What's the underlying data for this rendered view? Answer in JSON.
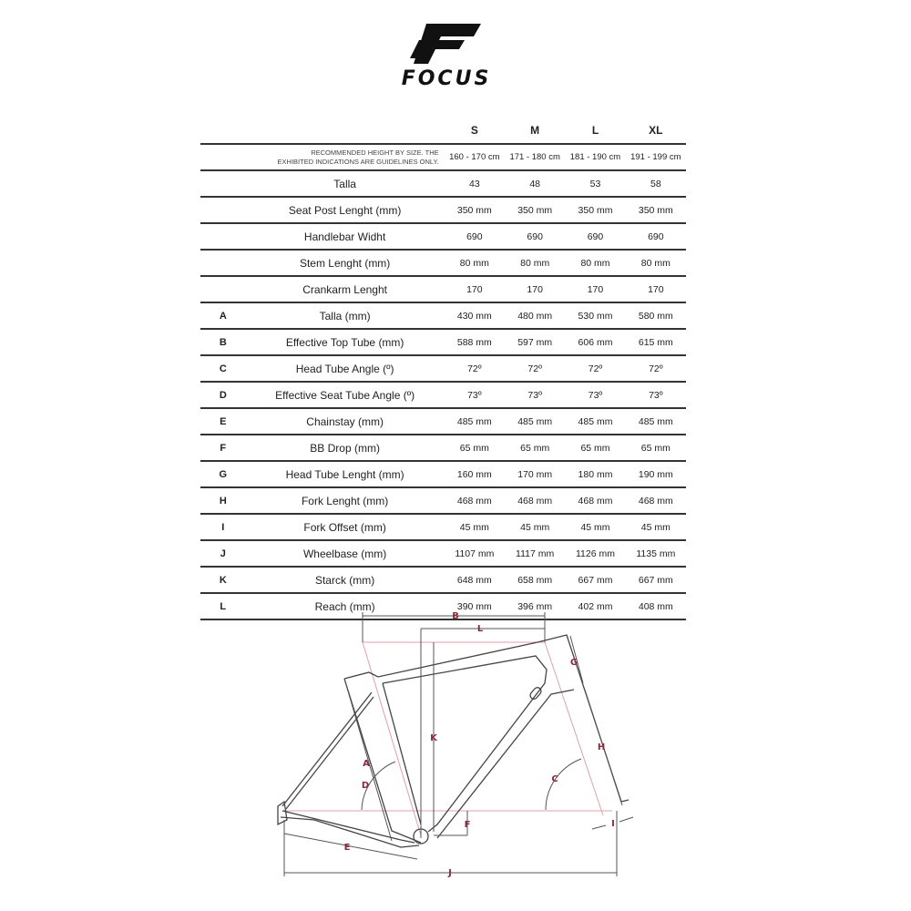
{
  "brand": {
    "name": "FOCUS"
  },
  "table": {
    "sizes": [
      "S",
      "M",
      "L",
      "XL"
    ],
    "recommended": {
      "label_line1": "RECOMMENDED HEIGHT BY SIZE.  THE",
      "label_line2": "EXHIBITED INDICATIONS ARE GUIDELINES ONLY.",
      "values": [
        "160 - 170 cm",
        "171 - 180 cm",
        "181 - 190 cm",
        "191 - 199 cm"
      ]
    },
    "rows": [
      {
        "letter": "",
        "label": "Talla",
        "values": [
          "43",
          "48",
          "53",
          "58"
        ]
      },
      {
        "letter": "",
        "label": "Seat Post Lenght (mm)",
        "values": [
          "350 mm",
          "350 mm",
          "350 mm",
          "350 mm"
        ]
      },
      {
        "letter": "",
        "label": "Handlebar Widht",
        "values": [
          "690",
          "690",
          "690",
          "690"
        ]
      },
      {
        "letter": "",
        "label": "Stem Lenght (mm)",
        "values": [
          "80 mm",
          "80 mm",
          "80 mm",
          "80 mm"
        ]
      },
      {
        "letter": "",
        "label": "Crankarm Lenght",
        "values": [
          "170",
          "170",
          "170",
          "170"
        ]
      },
      {
        "letter": "A",
        "label": "Talla (mm)",
        "values": [
          "430 mm",
          "480 mm",
          "530 mm",
          "580 mm"
        ]
      },
      {
        "letter": "B",
        "label": "Effective Top Tube (mm)",
        "values": [
          "588 mm",
          "597 mm",
          "606 mm",
          "615 mm"
        ]
      },
      {
        "letter": "C",
        "label": "Head Tube Angle (º)",
        "values": [
          "72º",
          "72º",
          "72º",
          "72º"
        ]
      },
      {
        "letter": "D",
        "label": "Effective Seat Tube Angle (º)",
        "values": [
          "73º",
          "73º",
          "73º",
          "73º"
        ]
      },
      {
        "letter": "E",
        "label": "Chainstay (mm)",
        "values": [
          "485 mm",
          "485 mm",
          "485 mm",
          "485 mm"
        ]
      },
      {
        "letter": "F",
        "label": "BB Drop (mm)",
        "values": [
          "65 mm",
          "65 mm",
          "65 mm",
          "65 mm"
        ]
      },
      {
        "letter": "G",
        "label": "Head Tube Lenght (mm)",
        "values": [
          "160 mm",
          "170 mm",
          "180 mm",
          "190 mm"
        ]
      },
      {
        "letter": "H",
        "label": "Fork Lenght (mm)",
        "values": [
          "468 mm",
          "468 mm",
          "468 mm",
          "468 mm"
        ]
      },
      {
        "letter": "I",
        "label": "Fork Offset (mm)",
        "values": [
          "45 mm",
          "45 mm",
          "45 mm",
          "45 mm"
        ]
      },
      {
        "letter": "J",
        "label": "Wheelbase (mm)",
        "values": [
          "1107 mm",
          "1117 mm",
          "1126 mm",
          "1135 mm"
        ]
      },
      {
        "letter": "K",
        "label": "Starck (mm)",
        "values": [
          "648 mm",
          "658 mm",
          "667 mm",
          "667 mm"
        ]
      },
      {
        "letter": "L",
        "label": "Reach (mm)",
        "values": [
          "390 mm",
          "396 mm",
          "402 mm",
          "408 mm"
        ]
      }
    ]
  },
  "diagram": {
    "labels": {
      "A": "A",
      "B": "B",
      "C": "C",
      "D": "D",
      "E": "E",
      "F": "F",
      "G": "G",
      "H": "H",
      "I": "I",
      "J": "J",
      "K": "K",
      "L": "L"
    },
    "colors": {
      "label": "#8b2a3a",
      "guide": "#e0a0a8",
      "frame": "#444444"
    }
  }
}
